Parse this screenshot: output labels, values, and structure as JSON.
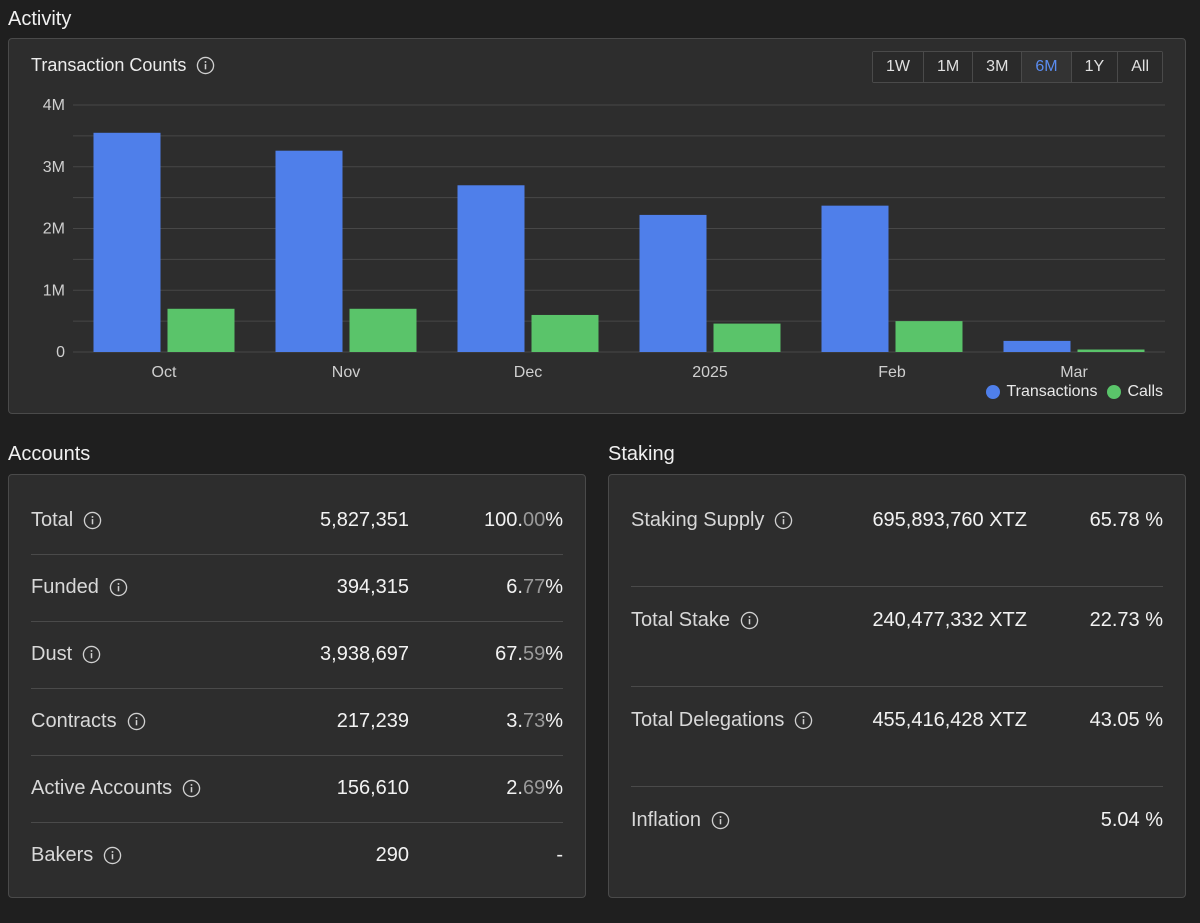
{
  "activity": {
    "title": "Activity",
    "chart_title": "Transaction Counts",
    "ranges": [
      "1W",
      "1M",
      "3M",
      "6M",
      "1Y",
      "All"
    ],
    "active_range": "6M"
  },
  "chart_data": {
    "type": "bar",
    "title": "Transaction Counts",
    "categories": [
      "Oct",
      "Nov",
      "Dec",
      "2025",
      "Feb",
      "Mar"
    ],
    "series": [
      {
        "name": "Transactions",
        "color": "#4f7fea",
        "values": [
          3550000,
          3260000,
          2700000,
          2220000,
          2370000,
          180000
        ]
      },
      {
        "name": "Calls",
        "color": "#5ac46a",
        "values": [
          700000,
          700000,
          600000,
          460000,
          500000,
          40000
        ]
      }
    ],
    "y_ticks": [
      {
        "value": 0,
        "label": "0"
      },
      {
        "value": 1000000,
        "label": "1M"
      },
      {
        "value": 2000000,
        "label": "2M"
      },
      {
        "value": 3000000,
        "label": "3M"
      },
      {
        "value": 4000000,
        "label": "4M"
      }
    ],
    "ylim": [
      0,
      4000000
    ],
    "grid": true,
    "legend": "bottom-right"
  },
  "accounts": {
    "title": "Accounts",
    "rows": [
      {
        "label": "Total",
        "value": "5,827,351",
        "pct_main": "100.",
        "pct_dim": "00",
        "pct_suffix": "%"
      },
      {
        "label": "Funded",
        "value": "394,315",
        "pct_main": "6.",
        "pct_dim": "77",
        "pct_suffix": "%"
      },
      {
        "label": "Dust",
        "value": "3,938,697",
        "pct_main": "67.",
        "pct_dim": "59",
        "pct_suffix": "%"
      },
      {
        "label": "Contracts",
        "value": "217,239",
        "pct_main": "3.",
        "pct_dim": "73",
        "pct_suffix": "%"
      },
      {
        "label": "Active Accounts",
        "value": "156,610",
        "pct_main": "2.",
        "pct_dim": "69",
        "pct_suffix": "%"
      },
      {
        "label": "Bakers",
        "value": "290",
        "pct_main": "-",
        "pct_dim": "",
        "pct_suffix": ""
      }
    ]
  },
  "staking": {
    "title": "Staking",
    "rows": [
      {
        "label": "Staking Supply",
        "value": "695,893,760 XTZ",
        "pct": "65.78 %"
      },
      {
        "label": "Total Stake",
        "value": "240,477,332 XTZ",
        "pct": "22.73 %"
      },
      {
        "label": "Total Delegations",
        "value": "455,416,428 XTZ",
        "pct": "43.05 %"
      },
      {
        "label": "Inflation",
        "value": "",
        "pct": "5.04 %"
      }
    ]
  }
}
